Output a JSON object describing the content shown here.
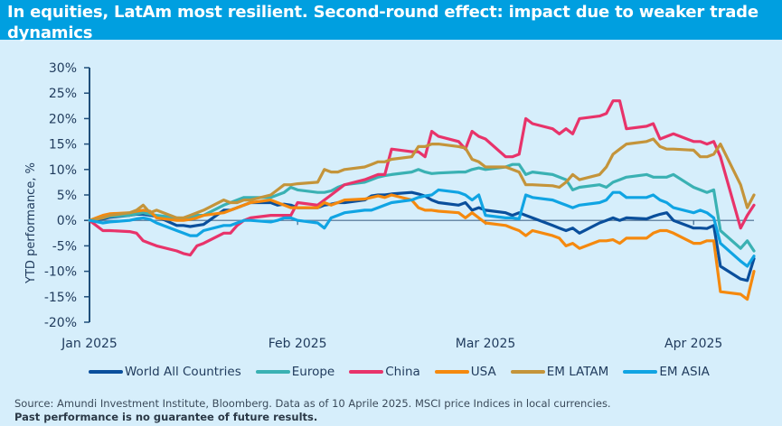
{
  "header": {
    "title": "In equities, LatAm most resilient. Second-round effect: impact due to weaker trade dynamics"
  },
  "footer": {
    "source": "Source: Amundi Investment Institute, Bloomberg. Data as of 10 Aprile 2025. MSCI price Indices in local currencies.",
    "disclaimer": "Past performance is no guarantee of future results."
  },
  "colors": {
    "background": "#d6eefb",
    "header_bg": "#009fe0",
    "axis": "#1f4e79"
  },
  "chart_data": {
    "type": "line",
    "title": "In equities, LatAm most resilient. Second-round effect: impact due to weaker trade dynamics",
    "xlabel": "",
    "ylabel": "YTD performance, %",
    "ylim": [
      -20,
      30
    ],
    "yticks": [
      30,
      25,
      20,
      15,
      10,
      5,
      0,
      -5,
      -10,
      -15,
      -20
    ],
    "ytick_labels": [
      "30%",
      "25%",
      "20%",
      "15%",
      "10%",
      "5%",
      "0%",
      "-5%",
      "-10%",
      "-15%",
      "-20%"
    ],
    "xlim_days": [
      0,
      99
    ],
    "xticks": [
      {
        "day": 0,
        "label": "Jan 2025"
      },
      {
        "day": 31,
        "label": "Feb 2025"
      },
      {
        "day": 59,
        "label": "Mar 2025"
      },
      {
        "day": 90,
        "label": "Apr 2025"
      }
    ],
    "grid": false,
    "legend_position": "bottom",
    "x_days": [
      0,
      2,
      3,
      6,
      7,
      8,
      9,
      10,
      13,
      14,
      15,
      16,
      17,
      20,
      21,
      22,
      23,
      24,
      27,
      28,
      29,
      30,
      31,
      34,
      35,
      36,
      37,
      38,
      41,
      42,
      43,
      44,
      45,
      48,
      49,
      50,
      51,
      52,
      55,
      56,
      57,
      58,
      59,
      62,
      63,
      64,
      65,
      66,
      69,
      70,
      71,
      72,
      73,
      76,
      77,
      78,
      79,
      80,
      83,
      84,
      85,
      86,
      87,
      90,
      91,
      92,
      93,
      94,
      97,
      98,
      99
    ],
    "series": [
      {
        "name": "World All Countries",
        "color": "#0a4f9c",
        "values": [
          0,
          0.3,
          0.6,
          1,
          1.2,
          1.2,
          1,
          0.8,
          -1,
          -1,
          -1.2,
          -1,
          -0.8,
          2,
          2,
          2.5,
          3,
          3.5,
          3.5,
          3,
          3.2,
          3,
          2.5,
          2.5,
          3,
          3.2,
          3.5,
          3.5,
          4,
          4.8,
          5,
          5,
          5.2,
          5.5,
          5.2,
          4.8,
          4,
          3.5,
          3,
          3.5,
          2,
          2.5,
          2,
          1.5,
          1,
          1.5,
          1,
          0.5,
          -1,
          -1.5,
          -2,
          -1.5,
          -2.5,
          -0.5,
          0,
          0.5,
          0,
          0.5,
          0.3,
          0.8,
          1.2,
          1.5,
          0,
          -1.5,
          -1.5,
          -1.6,
          -1,
          -9,
          -11.5,
          -11.8,
          -7.5
        ]
      },
      {
        "name": "Europe",
        "color": "#3ab1b3",
        "values": [
          0,
          0.5,
          0.8,
          1,
          1.3,
          1.5,
          1.2,
          1,
          0.5,
          0.4,
          0.5,
          1,
          1,
          3,
          3.5,
          4,
          4.5,
          4.5,
          4.5,
          5,
          5.5,
          6.5,
          6,
          5.5,
          5.5,
          5.8,
          6.5,
          7,
          7.5,
          8,
          8.5,
          8.8,
          9,
          9.5,
          10,
          9.5,
          9.2,
          9.3,
          9.5,
          9.5,
          10,
          10.3,
          10,
          10.5,
          11,
          11,
          9,
          9.5,
          9,
          8.5,
          8,
          6,
          6.5,
          7,
          6.5,
          7.5,
          8,
          8.5,
          9,
          8.5,
          8.5,
          8.5,
          9,
          6.5,
          6,
          5.5,
          6,
          -2,
          -5.5,
          -4,
          -6
        ]
      },
      {
        "name": "China",
        "color": "#e8336a",
        "values": [
          0,
          -2,
          -2,
          -2.2,
          -2.5,
          -4,
          -4.5,
          -5,
          -6,
          -6.5,
          -6.8,
          -5,
          -4.5,
          -2.5,
          -2.5,
          -1,
          0,
          0.5,
          1,
          1,
          1,
          1,
          3.5,
          3,
          4,
          5,
          6,
          7,
          8,
          8.5,
          9,
          9,
          14,
          13.5,
          13.5,
          12.5,
          17.5,
          16.5,
          15.5,
          14,
          17.5,
          16.5,
          16,
          12.5,
          12.5,
          13,
          20,
          19,
          18,
          17,
          18,
          17,
          20,
          20.5,
          21,
          23.5,
          23.5,
          18,
          18.5,
          19,
          16,
          16.5,
          17,
          15.5,
          15.5,
          15,
          15.5,
          12.5,
          -1.5,
          1,
          3
        ]
      },
      {
        "name": "USA",
        "color": "#f5890e",
        "values": [
          0,
          1,
          1.3,
          1.5,
          1.8,
          2,
          1.8,
          0.5,
          0,
          0,
          0.2,
          0.5,
          1,
          1.5,
          2,
          2.5,
          3,
          3.5,
          4,
          3.5,
          3,
          2.5,
          2.5,
          2.5,
          3.5,
          3,
          3.5,
          4,
          4.2,
          4.5,
          4.8,
          4.5,
          5,
          4,
          2.5,
          2,
          2,
          1.8,
          1.5,
          0.5,
          1.5,
          0.5,
          -0.5,
          -1,
          -1.5,
          -2,
          -3,
          -2,
          -3,
          -3.5,
          -5,
          -4.5,
          -5.5,
          -4,
          -4,
          -3.8,
          -4.5,
          -3.5,
          -3.5,
          -2.5,
          -2,
          -2,
          -2.5,
          -4.5,
          -4.5,
          -4,
          -4,
          -14,
          -14.5,
          -15.5,
          -10
        ]
      },
      {
        "name": "EM LATAM",
        "color": "#c4943a",
        "values": [
          0,
          0.5,
          1,
          1.5,
          2,
          3,
          1.5,
          2,
          0.5,
          0.5,
          1,
          1.5,
          2,
          4,
          3.5,
          3.5,
          4,
          4,
          5,
          6,
          7,
          7,
          7.2,
          7.5,
          10,
          9.5,
          9.5,
          10,
          10.5,
          11,
          11.5,
          11.5,
          12,
          12.5,
          14.5,
          14.5,
          15,
          15,
          14.5,
          14.2,
          12,
          11.5,
          10.5,
          10.5,
          10,
          9.5,
          7,
          7,
          6.8,
          6.5,
          7.5,
          9,
          8,
          9,
          10.5,
          13,
          14,
          15,
          15.5,
          16,
          14.5,
          14,
          14,
          13.8,
          12.5,
          12.5,
          13,
          15,
          7,
          2.5,
          5
        ]
      },
      {
        "name": "EM ASIA",
        "color": "#10a4e3",
        "values": [
          0,
          -0.5,
          -0.3,
          0,
          0.3,
          0.5,
          0.2,
          -0.5,
          -2,
          -2.5,
          -3,
          -3,
          -2,
          -1,
          -1,
          -0.5,
          0,
          0,
          -0.3,
          0,
          0.5,
          0.5,
          0,
          -0.5,
          -1.5,
          0.5,
          1,
          1.5,
          2,
          2,
          2.5,
          3,
          3.5,
          4,
          4.5,
          4.8,
          5,
          6,
          5.5,
          5,
          4,
          5,
          1,
          0.5,
          0.5,
          0.3,
          5,
          4.5,
          4,
          3.5,
          3,
          2.5,
          3,
          3.5,
          4,
          5.5,
          5.5,
          4.5,
          4.5,
          5,
          4,
          3.5,
          2.5,
          1.5,
          2,
          1.5,
          0.5,
          -4.5,
          -8,
          -9,
          -7
        ]
      }
    ]
  }
}
